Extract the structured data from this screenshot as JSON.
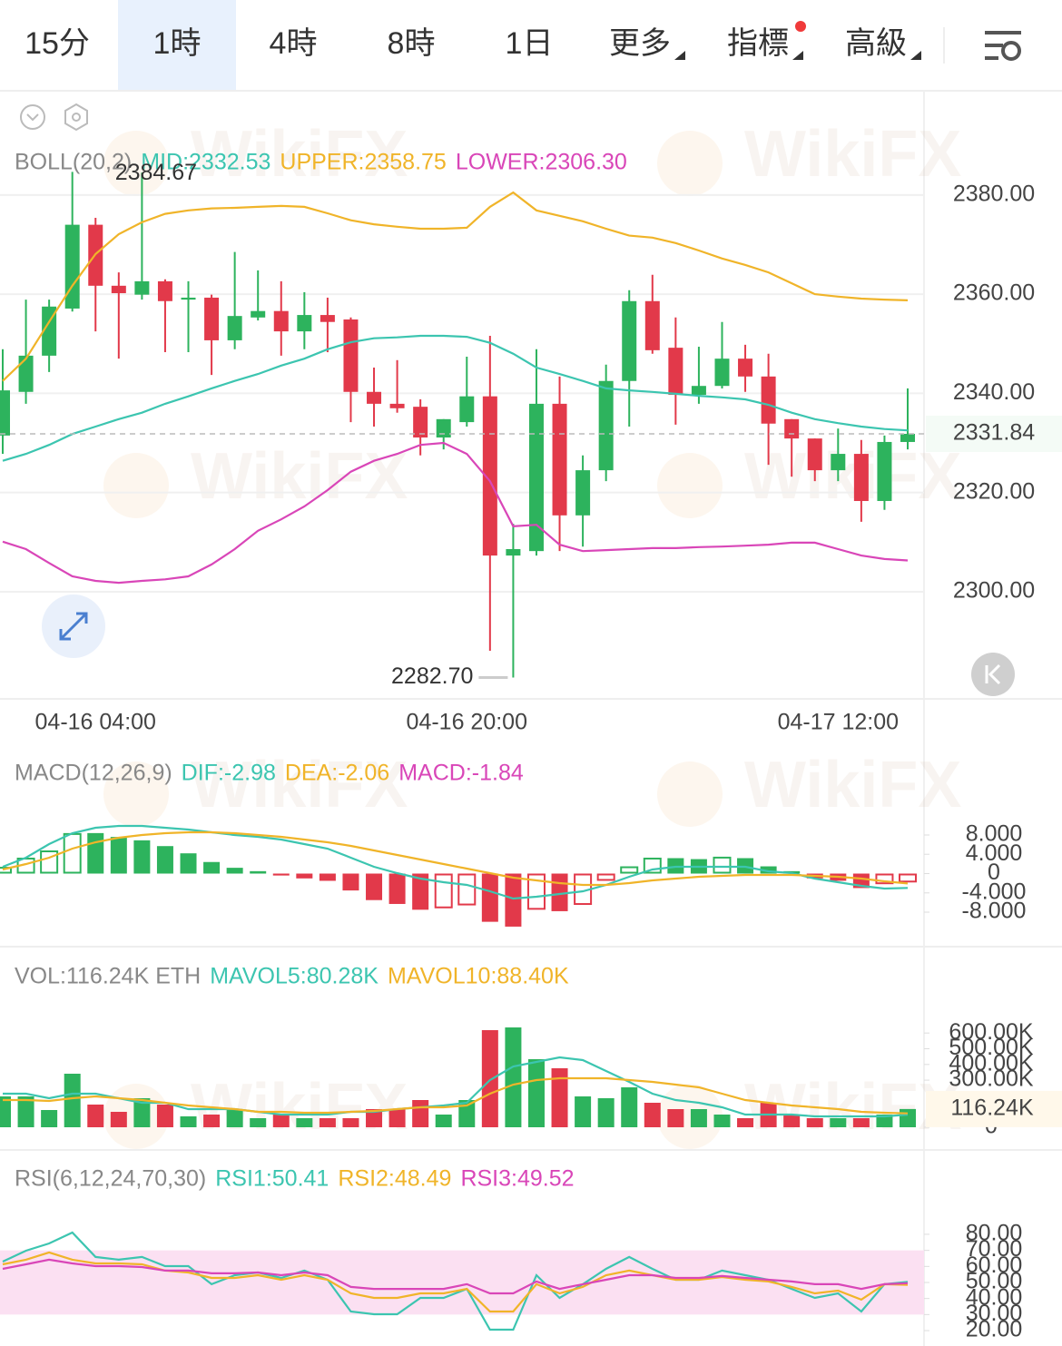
{
  "tabs": [
    "15分",
    "1時",
    "4時",
    "8時",
    "1日",
    "更多",
    "指標",
    "高級"
  ],
  "active_tab": 1,
  "watermark": "WikiFX",
  "chart_data": [
    {
      "type": "candlestick",
      "indicator": "BOLL(20,2)",
      "categories": [
        null,
        null,
        null,
        null,
        "04-16 04:00",
        null,
        null,
        null,
        null,
        null,
        null,
        null,
        null,
        null,
        null,
        null,
        null,
        null,
        null,
        null,
        "04-16 20:00",
        null,
        null,
        null,
        null,
        null,
        null,
        null,
        null,
        null,
        null,
        null,
        null,
        null,
        null,
        null,
        "04-17 12:00",
        null,
        null,
        null
      ],
      "open": [
        2331.5,
        2340.3,
        2347.6,
        2357.1,
        2374.0,
        2361.7,
        2359.9,
        2362.6,
        2358.9,
        2359.3,
        2350.7,
        2355.3,
        2356.6,
        2352.5,
        2355.8,
        2354.9,
        2340.3,
        2337.9,
        2337.3,
        2331.1,
        2334.2,
        2339.4,
        2307.3,
        2308.2,
        2337.9,
        2315.4,
        2324.5,
        2342.5,
        2358.6,
        2349.2,
        2339.7,
        2341.5,
        2347.0,
        2343.4,
        2334.8,
        2330.9,
        2324.5,
        2327.8,
        2318.3,
        2330.2
      ],
      "high": [
        2348.9,
        2358.9,
        2358.9,
        2384.67,
        2375.4,
        2364.4,
        2384.5,
        2363.0,
        2362.6,
        2359.9,
        2368.5,
        2364.8,
        2362.6,
        2360.4,
        2359.3,
        2355.3,
        2345.2,
        2346.7,
        2338.8,
        2334.8,
        2347.4,
        2351.6,
        2313.7,
        2348.9,
        2343.4,
        2327.5,
        2345.8,
        2360.8,
        2363.9,
        2355.3,
        2349.4,
        2354.4,
        2349.8,
        2348.0,
        2334.8,
        2330.9,
        2332.9,
        2330.6,
        2331.5,
        2341.0
      ],
      "low": [
        2327.8,
        2337.9,
        2344.3,
        2356.5,
        2352.5,
        2347.0,
        2358.9,
        2348.3,
        2348.3,
        2343.7,
        2348.9,
        2354.7,
        2347.6,
        2348.9,
        2348.3,
        2334.2,
        2333.3,
        2336.1,
        2327.5,
        2328.7,
        2333.3,
        2288.1,
        2282.7,
        2307.3,
        2308.2,
        2309.1,
        2322.3,
        2333.3,
        2348.0,
        2333.7,
        2337.9,
        2341.0,
        2340.3,
        2325.6,
        2323.2,
        2322.3,
        2322.3,
        2314.1,
        2316.5,
        2328.7
      ],
      "close": [
        2340.6,
        2347.6,
        2357.5,
        2374.0,
        2361.7,
        2360.2,
        2362.6,
        2358.6,
        2359.3,
        2350.7,
        2355.6,
        2356.6,
        2352.5,
        2355.8,
        2354.4,
        2340.3,
        2337.9,
        2337.0,
        2331.1,
        2334.8,
        2339.4,
        2307.3,
        2308.6,
        2337.9,
        2315.4,
        2324.5,
        2342.5,
        2358.6,
        2348.7,
        2339.7,
        2341.5,
        2347.0,
        2343.4,
        2333.9,
        2330.9,
        2324.5,
        2327.8,
        2318.3,
        2330.2,
        2331.84
      ],
      "max_label": {
        "value": 2384.67,
        "label": "2384.67"
      },
      "min_label": {
        "value": 2282.7,
        "label": "2282.70"
      },
      "colors": {
        "up": "#2db35d",
        "down": "#e2394a"
      },
      "series": [
        {
          "label": "MID:2332.53",
          "color": "#3cc5b0",
          "values": [
            2326.4,
            2327.8,
            2329.6,
            2331.8,
            2333.3,
            2334.8,
            2336.1,
            2337.9,
            2339.4,
            2341.0,
            2342.5,
            2343.9,
            2345.6,
            2347.0,
            2348.9,
            2350.3,
            2351.1,
            2351.3,
            2351.6,
            2351.6,
            2351.4,
            2350.2,
            2348.0,
            2345.2,
            2343.9,
            2342.5,
            2341.0,
            2340.6,
            2340.3,
            2339.9,
            2339.5,
            2339.2,
            2338.8,
            2337.7,
            2336.1,
            2334.8,
            2334.0,
            2333.3,
            2332.8,
            2332.53
          ]
        },
        {
          "label": "UPPER:2358.75",
          "color": "#f0b429",
          "values": [
            2342.5,
            2347.0,
            2354.4,
            2361.7,
            2368.1,
            2372.1,
            2374.5,
            2376.2,
            2376.9,
            2377.3,
            2377.4,
            2377.6,
            2377.8,
            2377.6,
            2376.3,
            2374.9,
            2374.1,
            2373.6,
            2373.2,
            2373.2,
            2373.4,
            2377.6,
            2380.5,
            2376.9,
            2375.8,
            2374.7,
            2373.2,
            2371.8,
            2371.4,
            2370.3,
            2368.8,
            2367.2,
            2365.9,
            2364.4,
            2362.2,
            2360.0,
            2359.5,
            2359.1,
            2358.9,
            2358.75
          ]
        },
        {
          "label": "LOWER:2306.30",
          "color": "#d946b8",
          "values": [
            2310.1,
            2308.6,
            2305.8,
            2303.1,
            2302.2,
            2301.8,
            2302.2,
            2302.5,
            2303.1,
            2305.5,
            2308.6,
            2312.3,
            2314.6,
            2317.2,
            2320.5,
            2324.2,
            2326.4,
            2327.8,
            2329.6,
            2330.0,
            2327.8,
            2322.3,
            2313.2,
            2313.5,
            2309.5,
            2308.2,
            2308.4,
            2308.6,
            2308.8,
            2308.8,
            2309.0,
            2309.1,
            2309.3,
            2309.5,
            2309.9,
            2309.9,
            2308.6,
            2307.3,
            2306.6,
            2306.3
          ]
        }
      ],
      "ylim": [
        2278.4,
        2400.1
      ],
      "yticks": [
        {
          "value": 2380,
          "label": "2380.00"
        },
        {
          "value": 2360,
          "label": "2360.00"
        },
        {
          "value": 2340,
          "label": "2340.00"
        },
        {
          "value": 2320,
          "label": "2320.00"
        },
        {
          "value": 2300,
          "label": "2300.00"
        }
      ],
      "grid": true
    },
    {
      "type": "bar",
      "indicator": "MACD(12,26,9)",
      "bar_label": "MACD:-1.84",
      "bar_label_color": "#d946b8",
      "values": [
        1.4,
        3.3,
        4.8,
        8.4,
        8.4,
        7.6,
        6.9,
        5.7,
        4.2,
        2.4,
        1.2,
        0.5,
        -0.4,
        -1.0,
        -1.5,
        -3.5,
        -5.5,
        -6.3,
        -7.5,
        -7.2,
        -6.6,
        -10.0,
        -11.0,
        -7.5,
        -7.8,
        -6.5,
        -1.5,
        1.5,
        3.3,
        3.2,
        3.0,
        3.5,
        3.2,
        1.5,
        0.5,
        -1.0,
        -1.5,
        -3.0,
        -2.2,
        -1.84
      ],
      "colors": {
        "up": "#2db35d",
        "down": "#e2394a"
      },
      "series": [
        {
          "label": "DIF:-2.98",
          "color": "#3cc5b0",
          "values": [
            1.41,
            3.29,
            6.12,
            8.38,
            9.51,
            9.88,
            9.88,
            9.51,
            9.13,
            8.56,
            8.0,
            7.62,
            7.06,
            6.12,
            5.18,
            3.29,
            1.41,
            0.09,
            -1.04,
            -1.79,
            -2.35,
            -3.67,
            -5.18,
            -4.8,
            -4.24,
            -3.67,
            -2.35,
            -0.66,
            0.85,
            1.41,
            1.41,
            1.41,
            1.41,
            0.47,
            0.09,
            -1.04,
            -1.79,
            -2.54,
            -3.11,
            -2.98
          ]
        },
        {
          "label": "DEA:-2.06",
          "color": "#f0b429",
          "values": [
            0.85,
            1.98,
            3.29,
            5.18,
            6.49,
            7.44,
            8.0,
            8.38,
            8.56,
            8.56,
            8.38,
            8.0,
            7.62,
            7.06,
            6.49,
            5.74,
            4.8,
            3.86,
            2.92,
            1.98,
            1.04,
            0.09,
            -0.85,
            -1.41,
            -1.98,
            -2.35,
            -2.35,
            -1.98,
            -1.41,
            -1.04,
            -0.66,
            -0.47,
            -0.28,
            -0.28,
            -0.28,
            -0.47,
            -0.66,
            -1.04,
            -1.6,
            -2.06
          ]
        }
      ],
      "ylim": [
        -14.59,
        15.53
      ],
      "yticks": [
        {
          "value": 8,
          "label": "8.000"
        },
        {
          "value": 4,
          "label": "4.000"
        },
        0,
        {
          "value": -4,
          "label": "-4.000"
        },
        {
          "value": -8,
          "label": "-8.000"
        }
      ]
    },
    {
      "type": "bar",
      "indicator": "VOL:116.24K ETH",
      "values": [
        196500,
        196500,
        109800,
        341000,
        144500,
        98300,
        185000,
        144500,
        69400,
        80900,
        115600,
        57800,
        80900,
        57800,
        57800,
        57800,
        115600,
        115600,
        173400,
        80900,
        173400,
        618500,
        635800,
        433500,
        375700,
        196500,
        185000,
        254300,
        156100,
        115600,
        115600,
        80900,
        57800,
        156100,
        80900,
        57800,
        57800,
        57800,
        80900,
        116240
      ],
      "value_labels": [
        null,
        null,
        null,
        null,
        null,
        null,
        null,
        null,
        null,
        null,
        null,
        null,
        null,
        null,
        null,
        null,
        null,
        null,
        null,
        null,
        null,
        null,
        null,
        null,
        null,
        null,
        null,
        null,
        null,
        null,
        null,
        null,
        null,
        null,
        null,
        null,
        null,
        null,
        null,
        "116.24K"
      ],
      "color_by_candle": true,
      "series": [
        {
          "label": "MAVOL5:80.28K",
          "color": "#3cc5b0",
          "values": [
            213900,
            213900,
            185000,
            213900,
            213900,
            185000,
            156100,
            156100,
            115600,
            115600,
            115600,
            98300,
            80900,
            80900,
            80900,
            98300,
            98300,
            115600,
            127200,
            138700,
            156100,
            300600,
            387300,
            416200,
            445100,
            427700,
            358400,
            289000,
            213900,
            173400,
            156100,
            127200,
            80900,
            80900,
            80900,
            69400,
            69400,
            69400,
            69400,
            80280
          ]
        },
        {
          "label": "MAVOL10:88.40K",
          "color": "#f0b429",
          "values": [
            173400,
            173400,
            167600,
            185000,
            196500,
            185000,
            173400,
            156100,
            138700,
            127200,
            115600,
            98300,
            98300,
            92500,
            92500,
            98300,
            104000,
            115600,
            127200,
            127200,
            138700,
            213900,
            271700,
            300600,
            312100,
            312100,
            312100,
            300600,
            289000,
            271700,
            254300,
            213900,
            173400,
            156100,
            138700,
            127200,
            115600,
            98300,
            92500,
            88400
          ]
        }
      ],
      "ylim": [
        0,
        820800
      ],
      "yticks": [
        {
          "value": 600000,
          "label": "600.00K"
        },
        {
          "value": 500000,
          "label": "500.00K"
        },
        {
          "value": 400000,
          "label": "400.00K"
        },
        {
          "value": 300000,
          "label": "300.00K"
        },
        0
      ]
    },
    {
      "type": "line",
      "indicator": "RSI(6,12,24,70,30)",
      "band": [
        30,
        70
      ],
      "band_color": "#fbe0f2",
      "series": [
        {
          "label": "RSI1:50.41",
          "color": "#3cc5b0",
          "values": [
            63.0,
            69.8,
            74.3,
            81.1,
            65.9,
            64.2,
            65.9,
            60.2,
            60.2,
            48.9,
            54.5,
            56.2,
            52.8,
            57.4,
            51.7,
            31.9,
            30.2,
            30.2,
            40.4,
            40.4,
            46.0,
            20.6,
            20.6,
            54.5,
            40.4,
            48.9,
            58.5,
            65.9,
            58.5,
            51.7,
            51.7,
            57.4,
            54.5,
            51.7,
            46.0,
            40.4,
            43.2,
            31.9,
            48.9,
            50.41
          ]
        },
        {
          "label": "RSI2:48.49",
          "color": "#f0b429",
          "values": [
            61.3,
            64.2,
            68.7,
            64.2,
            61.9,
            61.9,
            61.3,
            57.4,
            56.2,
            52.8,
            52.8,
            54.5,
            51.7,
            54.5,
            51.7,
            43.2,
            40.4,
            40.4,
            43.2,
            43.2,
            46.0,
            31.9,
            31.9,
            48.9,
            43.2,
            47.2,
            54.5,
            57.4,
            54.5,
            51.7,
            51.7,
            53.4,
            51.7,
            50.6,
            47.2,
            43.2,
            44.9,
            39.3,
            48.9,
            48.49
          ]
        },
        {
          "label": "RSI3:49.52",
          "color": "#d946b8",
          "values": [
            58.5,
            61.3,
            64.2,
            61.9,
            60.2,
            60.2,
            59.6,
            57.4,
            57.4,
            55.7,
            55.7,
            56.2,
            54.5,
            56.2,
            54.5,
            47.2,
            46.0,
            46.0,
            46.0,
            46.0,
            48.9,
            43.2,
            43.2,
            50.6,
            46.0,
            48.9,
            51.7,
            54.5,
            54.5,
            52.8,
            52.8,
            54.0,
            52.8,
            51.7,
            50.6,
            48.9,
            48.9,
            46.0,
            48.9,
            49.52
          ]
        }
      ],
      "ylim": [
        12.1,
        102.6
      ],
      "yticks": [
        {
          "value": 80,
          "label": "80.00"
        },
        {
          "value": 70,
          "label": "70.00"
        },
        {
          "value": 60,
          "label": "60.00"
        },
        {
          "value": 50,
          "label": "50.00"
        },
        {
          "value": 40,
          "label": "40.00"
        },
        {
          "value": 30,
          "label": "30.00"
        },
        {
          "value": 20,
          "label": "20.00"
        }
      ]
    }
  ]
}
